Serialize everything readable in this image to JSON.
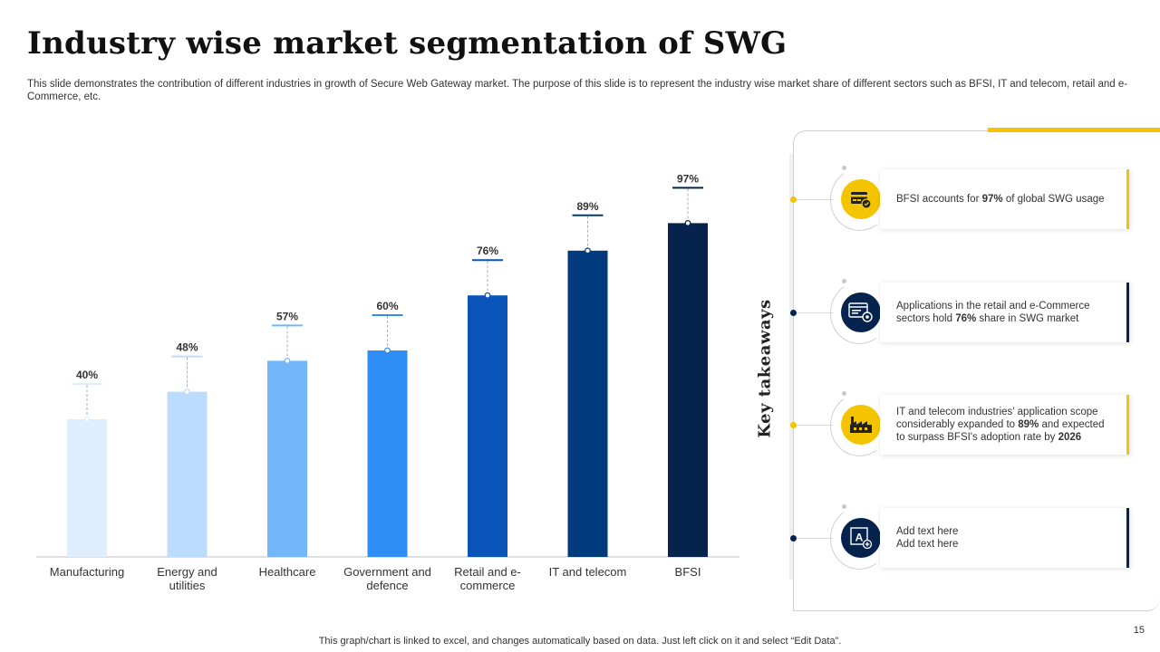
{
  "slide": {
    "title": "Industry wise market segmentation of SWG",
    "subtitle": "This slide demonstrates the contribution of different industries in growth of Secure Web Gateway market. The purpose of this slide is to represent the industry wise market share of different sectors such as BFSI, IT and telecom, retail and e-Commerce, etc.",
    "footer": "This graph/chart is linked to excel,  and changes automatically based on data. Just left click on it and select “Edit Data”.",
    "page_number": "15"
  },
  "chart_data": {
    "type": "bar",
    "title": "",
    "xlabel": "",
    "ylabel": "",
    "ylim": [
      0,
      100
    ],
    "grid": false,
    "categories": [
      [
        "Manufacturing"
      ],
      [
        "Energy and",
        "utilities"
      ],
      [
        "Healthcare"
      ],
      [
        "Government and",
        "defence"
      ],
      [
        "Retail and e-",
        "commerce"
      ],
      [
        "IT and telecom"
      ],
      [
        "BFSI"
      ]
    ],
    "values": [
      40,
      48,
      57,
      60,
      76,
      89,
      97
    ],
    "value_labels": [
      "40%",
      "48%",
      "57%",
      "60%",
      "76%",
      "89%",
      "97%"
    ],
    "bar_colors": [
      "#deeefe",
      "#bcdcfd",
      "#74b6fa",
      "#2f8ef5",
      "#0a53b8",
      "#023a7e",
      "#05234d"
    ]
  },
  "takeaways": {
    "heading": "Key takeaways",
    "items": [
      {
        "parts": [
          {
            "t": "BFSI accounts for "
          },
          {
            "t": "97%",
            "b": true
          },
          {
            "t": " of global SWG usage"
          }
        ],
        "icon": "bank-card-icon",
        "circle_color": "#f5c400",
        "accent_color": "#f5c400"
      },
      {
        "parts": [
          {
            "t": "Applications in the retail and e-Commerce sectors hold "
          },
          {
            "t": "76%",
            "b": true
          },
          {
            "t": " share in SWG market"
          }
        ],
        "icon": "browser-settings-icon",
        "circle_color": "#05234d",
        "accent_color": "#05234d"
      },
      {
        "parts": [
          {
            "t": "IT and telecom industries' application scope considerably expanded to "
          },
          {
            "t": "89%",
            "b": true
          },
          {
            "t": " and expected to surpass BFSI's adoption rate by "
          },
          {
            "t": "2026",
            "b": true
          }
        ],
        "icon": "factory-icon",
        "circle_color": "#f5c400",
        "accent_color": "#f5c400"
      },
      {
        "parts": [
          {
            "t": "Add text here"
          },
          {
            "br": true
          },
          {
            "t": "Add text here"
          }
        ],
        "icon": "text-edit-icon",
        "circle_color": "#05234d",
        "accent_color": "#05234d"
      }
    ]
  }
}
